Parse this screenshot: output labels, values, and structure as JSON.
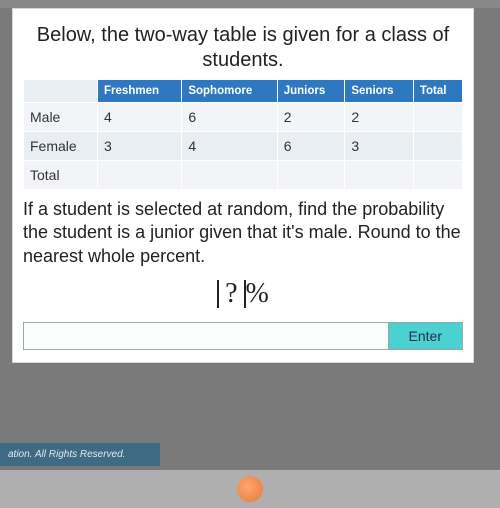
{
  "title": "Below, the two-way table is given for a class of students.",
  "table": {
    "columns": [
      "",
      "Freshmen",
      "Sophomore",
      "Juniors",
      "Seniors",
      "Total"
    ],
    "rows": [
      {
        "label": "Male",
        "cells": [
          "4",
          "6",
          "2",
          "2",
          ""
        ]
      },
      {
        "label": "Female",
        "cells": [
          "3",
          "4",
          "6",
          "3",
          ""
        ]
      },
      {
        "label": "Total",
        "cells": [
          "",
          "",
          "",
          "",
          ""
        ]
      }
    ],
    "header_bg": "#2e78c2",
    "header_fg": "#ffffff",
    "row_bg_odd": "#f2f4f7",
    "row_bg_even": "#e9eef3",
    "font_size_header": 11.5,
    "font_size_cell": 14
  },
  "question": "If a student is selected at random, find the probability the student is a junior given that it's male. Round to the nearest whole percent.",
  "answer": {
    "placeholder_glyph": "?",
    "suffix": "%"
  },
  "input": {
    "value": "",
    "placeholder": ""
  },
  "enter_label": "Enter",
  "colors": {
    "enter_btn_bg": "#4bd1d1",
    "card_bg": "#ffffff",
    "desktop_bg": "#7a7a7a",
    "footer_bg": "#3f6a84",
    "footer_fg": "#dfe9ef"
  },
  "footer_text": "ation. All Rights Reserved."
}
